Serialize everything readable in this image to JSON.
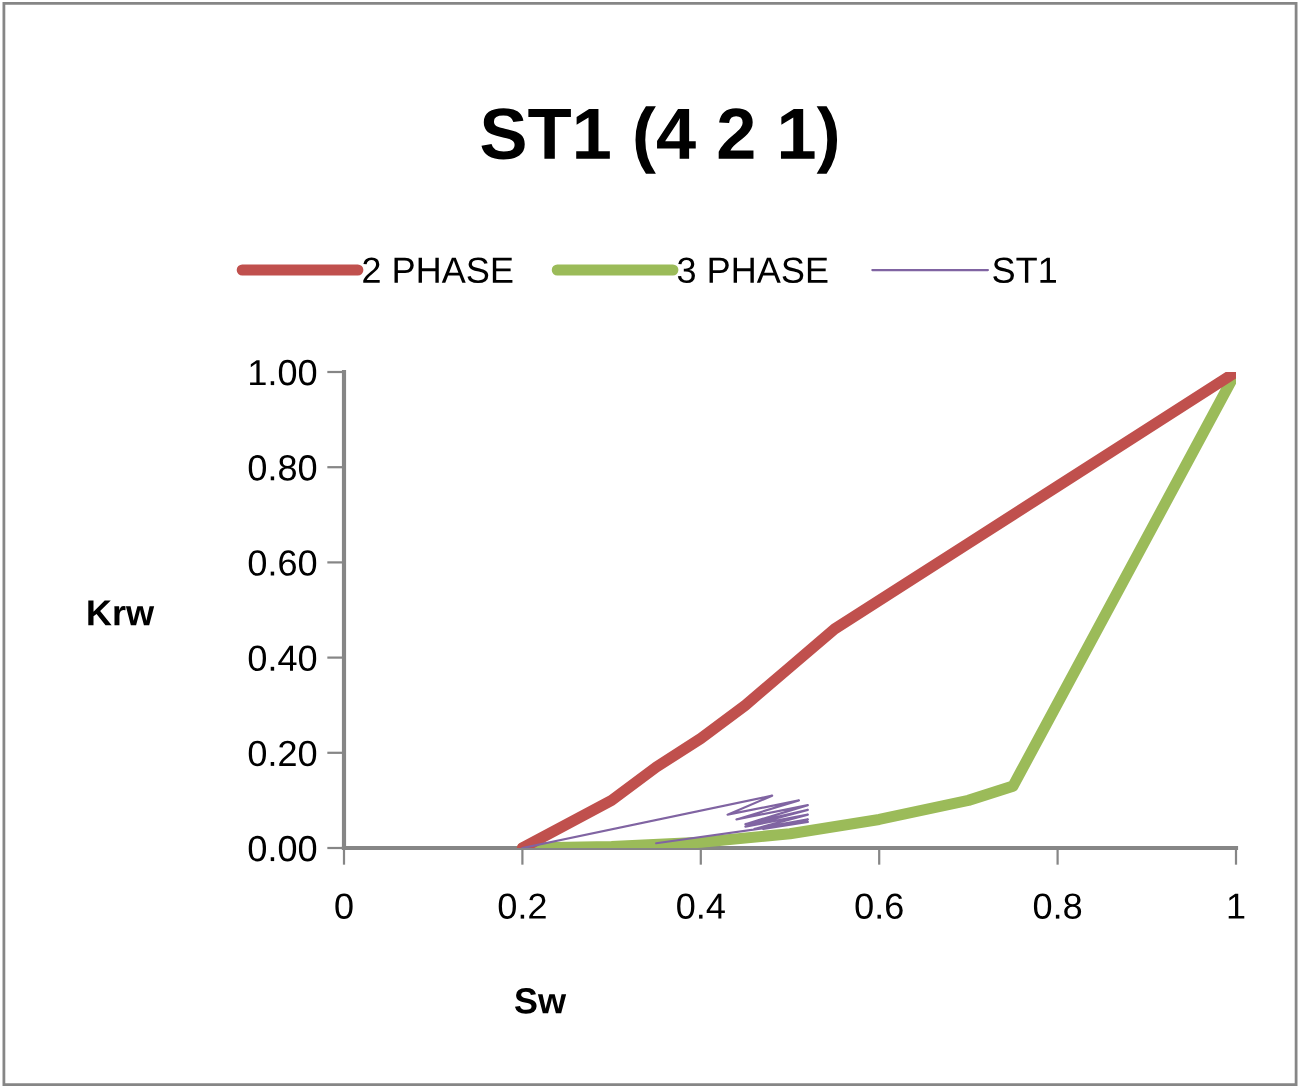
{
  "chart_data": {
    "type": "line",
    "title": "ST1 (4 2 1)",
    "xlabel": "Sw",
    "ylabel": "Krw",
    "xlim": [
      0,
      1
    ],
    "xticks": [
      0,
      0.2,
      0.4,
      0.6,
      0.8,
      1
    ],
    "ylim": [
      0,
      1
    ],
    "yticks": [
      {
        "value": 0,
        "label": "0.00"
      },
      {
        "value": 0.2,
        "label": "0.20"
      },
      {
        "value": 0.4,
        "label": "0.40"
      },
      {
        "value": 0.6,
        "label": "0.60"
      },
      {
        "value": 0.8,
        "label": "0.80"
      },
      {
        "value": 1,
        "label": "1.00"
      }
    ],
    "grid": false,
    "legend": "top",
    "marker": "none",
    "series": [
      {
        "name": "2 PHASE",
        "color": "#c0504d",
        "x": [
          0.2,
          0.3,
          0.35,
          0.4,
          0.45,
          0.5,
          0.55,
          0.7,
          0.8,
          0.9,
          1
        ],
        "values": [
          0,
          0.1,
          0.17,
          0.23,
          0.3,
          0.38,
          0.46,
          0.64,
          0.76,
          0.88,
          1
        ]
      },
      {
        "name": "3 PHASE",
        "color": "#9bbb59",
        "x": [
          0.2,
          0.3,
          0.4,
          0.5,
          0.6,
          0.7,
          0.75,
          1
        ],
        "values": [
          0,
          0.003,
          0.012,
          0.03,
          0.06,
          0.1,
          0.13,
          1
        ]
      },
      {
        "name": "ST1",
        "color": "#8064a2",
        "x": [
          0.2,
          0.48,
          0.43,
          0.51,
          0.44,
          0.52,
          0.45,
          0.52,
          0.45,
          0.52,
          0.46,
          0.52,
          0.47,
          0.52,
          0.35
        ],
        "values": [
          0,
          0.11,
          0.07,
          0.1,
          0.06,
          0.09,
          0.05,
          0.08,
          0.045,
          0.07,
          0.04,
          0.06,
          0.04,
          0.055,
          0.01
        ]
      }
    ]
  }
}
